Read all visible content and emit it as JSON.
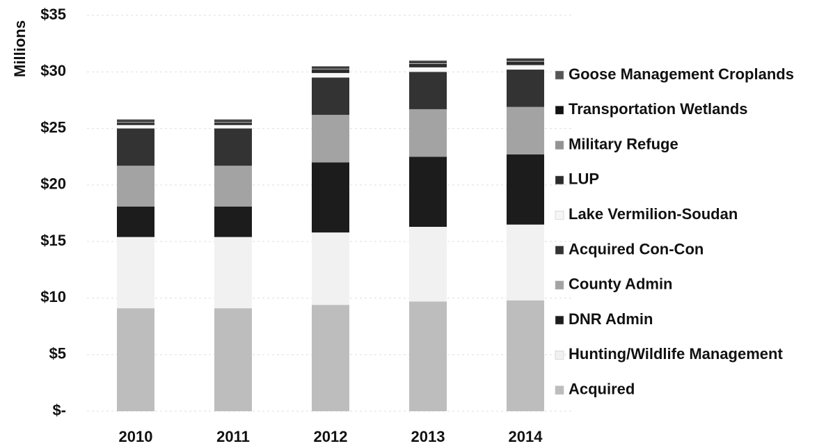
{
  "chart_data": {
    "type": "stacked_bar",
    "y_label": "Millions",
    "categories": [
      "2010",
      "2011",
      "2012",
      "2013",
      "2014"
    ],
    "series": [
      {
        "name": "Acquired",
        "color": "#bdbdbd",
        "values": [
          9.1,
          9.1,
          9.4,
          9.7,
          9.8
        ]
      },
      {
        "name": "Hunting/Wildlife Management",
        "color": "#f1f1f1",
        "values": [
          6.3,
          6.3,
          6.4,
          6.6,
          6.7
        ]
      },
      {
        "name": "DNR Admin",
        "color": "#1c1c1c",
        "values": [
          2.7,
          2.7,
          6.2,
          6.2,
          6.2
        ]
      },
      {
        "name": "County Admin",
        "color": "#a3a3a3",
        "values": [
          3.6,
          3.6,
          4.2,
          4.2,
          4.2
        ]
      },
      {
        "name": "Acquired Con-Con",
        "color": "#333333",
        "values": [
          3.3,
          3.3,
          3.3,
          3.3,
          3.3
        ]
      },
      {
        "name": "Lake Vermilion-Soudan",
        "color": "#f6f6f6",
        "values": [
          0.3,
          0.3,
          0.4,
          0.4,
          0.4
        ]
      },
      {
        "name": "LUP",
        "color": "#2b2b2b",
        "values": [
          0.2,
          0.2,
          0.3,
          0.3,
          0.3
        ]
      },
      {
        "name": "Military Refuge",
        "color": "#939393",
        "values": [
          0.1,
          0.1,
          0.1,
          0.1,
          0.1
        ]
      },
      {
        "name": "Transportation Wetlands",
        "color": "#121212",
        "values": [
          0.1,
          0.1,
          0.1,
          0.1,
          0.1
        ]
      },
      {
        "name": "Goose Management Croplands",
        "color": "#555555",
        "values": [
          0.1,
          0.1,
          0.1,
          0.1,
          0.1
        ]
      }
    ],
    "ylim": [
      0,
      35
    ],
    "yticks": [
      {
        "value": 0,
        "label": "$-"
      },
      {
        "value": 5,
        "label": "$5"
      },
      {
        "value": 10,
        "label": "$10"
      },
      {
        "value": 15,
        "label": "$15"
      },
      {
        "value": 20,
        "label": "$20"
      },
      {
        "value": 25,
        "label": "$25"
      },
      {
        "value": 30,
        "label": "$30"
      },
      {
        "value": 35,
        "label": "$35"
      }
    ],
    "grid": true,
    "legend": "right"
  }
}
